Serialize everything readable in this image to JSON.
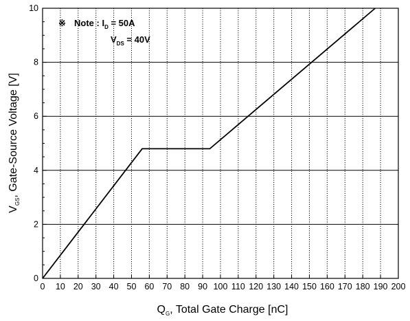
{
  "chart_data": {
    "type": "line",
    "xlabel": "Q",
    "xlabel_sub": "G",
    "xlabel_rest": ", Total Gate Charge [nC]",
    "ylabel": "V",
    "ylabel_sub": "GS",
    "ylabel_rest": ", Gate-Source Voltage [V]",
    "xlim": [
      0,
      200
    ],
    "ylim": [
      0,
      10
    ],
    "x_major_step": 10,
    "y_major_step": 2,
    "y_minor_step": 0.5,
    "grid": {
      "x": "dotted",
      "y": "solid"
    },
    "note": {
      "symbol": "※",
      "line1_prefix": "Note : I",
      "line1_sub": "D",
      "line1_suffix": " = 50A",
      "line2_prefix": "V",
      "line2_sub": "DS",
      "line2_suffix": " = 40V"
    },
    "series": [
      {
        "x": [
          0,
          56,
          94,
          187
        ],
        "y": [
          0,
          4.8,
          4.8,
          10
        ]
      }
    ]
  }
}
